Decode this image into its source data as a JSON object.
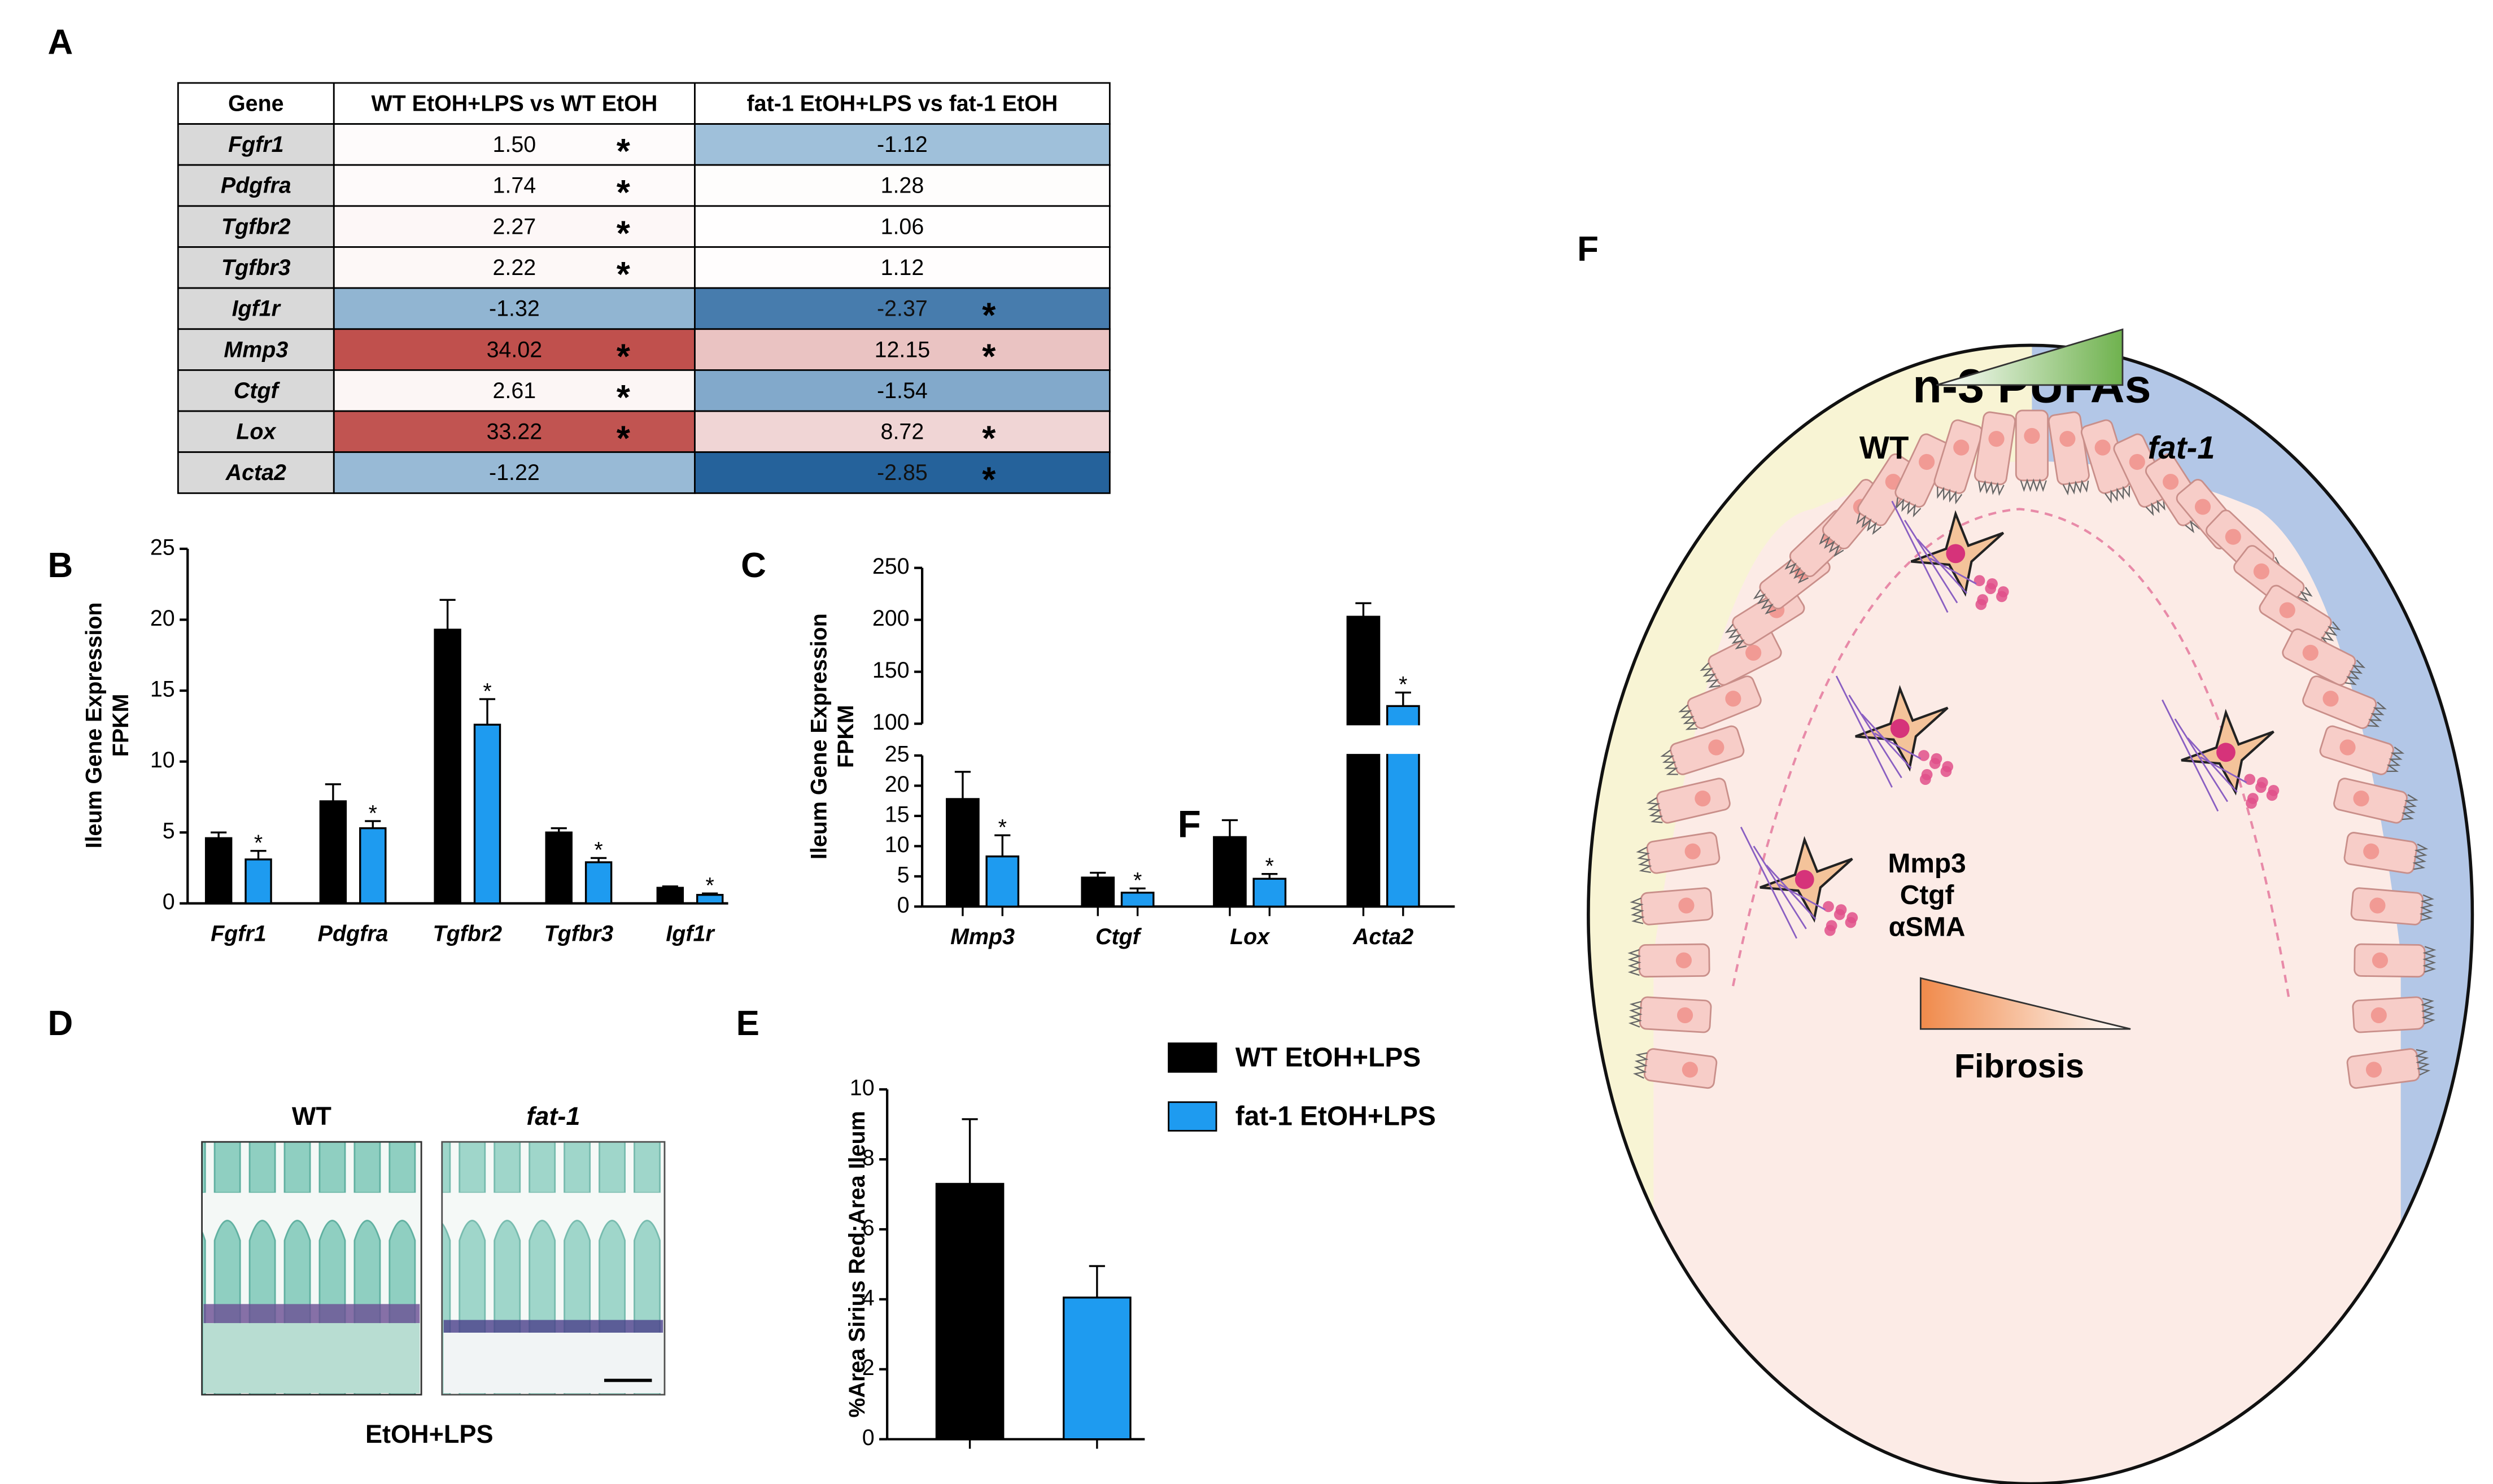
{
  "panel_labels": [
    "A",
    "B",
    "C",
    "D",
    "E",
    "F"
  ],
  "table": {
    "header": [
      "Gene",
      "WT EtOH+LPS vs WT EtOH",
      "fat-1 EtOH+LPS vs fat-1 EtOH"
    ],
    "significance_marker": "*",
    "rows": [
      {
        "gene": "Fgfr1",
        "wt": "1.50",
        "wt_sig": true,
        "fat1": "-1.12",
        "fat1_sig": false
      },
      {
        "gene": "Pdgfra",
        "wt": "1.74",
        "wt_sig": true,
        "fat1": "1.28",
        "fat1_sig": false
      },
      {
        "gene": "Tgfbr2",
        "wt": "2.27",
        "wt_sig": true,
        "fat1": "1.06",
        "fat1_sig": false
      },
      {
        "gene": "Tgfbr3",
        "wt": "2.22",
        "wt_sig": true,
        "fat1": "1.12",
        "fat1_sig": false
      },
      {
        "gene": "Igf1r",
        "wt": "-1.32",
        "wt_sig": false,
        "fat1": "-2.37",
        "fat1_sig": true
      },
      {
        "gene": "Mmp3",
        "wt": "34.02",
        "wt_sig": true,
        "fat1": "12.15",
        "fat1_sig": true
      },
      {
        "gene": "Ctgf",
        "wt": "2.61",
        "wt_sig": true,
        "fat1": "-1.54",
        "fat1_sig": false
      },
      {
        "gene": "Lox",
        "wt": "33.22",
        "wt_sig": true,
        "fat1": "8.72",
        "fat1_sig": true
      },
      {
        "gene": "Acta2",
        "wt": "-1.22",
        "wt_sig": false,
        "fat1": "-2.85",
        "fat1_sig": true
      }
    ]
  },
  "chart_data": [
    {
      "type": "bar",
      "y_label": [
        "Ileum Gene Expression",
        "FPKM"
      ],
      "categories": [
        "Fgfr1",
        "Pdgfra",
        "Tgfbr2",
        "Tgfbr3",
        "Igf1r"
      ],
      "significance_marker": "*",
      "series": [
        {
          "name": "WT EtOH+LPS",
          "color": "#000000",
          "values": [
            4.6,
            7.2,
            19.3,
            5.0,
            1.1
          ],
          "errors": [
            0.4,
            1.2,
            2.1,
            0.3,
            0.1
          ],
          "significant": [
            false,
            false,
            false,
            false,
            false
          ]
        },
        {
          "name": "fat-1 EtOH+LPS",
          "color": "#1e9bf0",
          "values": [
            3.1,
            5.3,
            12.6,
            2.9,
            0.6
          ],
          "errors": [
            0.6,
            0.5,
            1.8,
            0.3,
            0.1
          ],
          "significant": [
            true,
            true,
            true,
            true,
            true
          ]
        }
      ],
      "ylim": [
        0,
        25
      ],
      "yticks": [
        0,
        5,
        10,
        15,
        20,
        25
      ]
    },
    {
      "type": "broken-bar",
      "y_label": [
        "Ileum Gene Expression",
        "FPKM"
      ],
      "categories": [
        "Mmp3",
        "Ctgf",
        "Lox",
        "Acta2"
      ],
      "significance_marker": "*",
      "annotation": "F",
      "series": [
        {
          "name": "WT EtOH+LPS",
          "color": "#000000",
          "values": [
            17.8,
            4.8,
            11.5,
            203
          ],
          "errors": [
            4.5,
            0.8,
            2.8,
            13
          ],
          "significant": [
            false,
            false,
            false,
            false
          ]
        },
        {
          "name": "fat-1 EtOH+LPS",
          "color": "#1e9bf0",
          "values": [
            8.3,
            2.3,
            4.6,
            117
          ],
          "errors": [
            3.5,
            0.7,
            0.8,
            13
          ],
          "significant": [
            true,
            true,
            true,
            true
          ]
        }
      ],
      "ylim": [
        0,
        250
      ],
      "axis_break": [
        25,
        100
      ],
      "yticks": [
        0,
        5,
        10,
        15,
        20,
        25,
        100,
        150,
        200,
        250
      ]
    },
    {
      "type": "bar",
      "y_label": [
        "%Area Sirius Red:Area Ileum"
      ],
      "categories": [
        null
      ],
      "series": [
        {
          "name": "WT EtOH+LPS",
          "color": "#000000",
          "values": [
            7.3
          ],
          "errors": [
            1.85
          ]
        },
        {
          "name": "fat-1 EtOH+LPS",
          "color": "#1e9bf0",
          "values": [
            4.05
          ],
          "errors": [
            0.9
          ]
        }
      ],
      "ylim": [
        0,
        10
      ],
      "yticks": [
        0,
        2,
        4,
        6,
        8,
        10
      ],
      "legend": "right"
    }
  ],
  "histology": {
    "labels": [
      "WT",
      "fat-1"
    ],
    "caption": "EtOH+LPS"
  },
  "diagram": {
    "title": "n-3 PUFAs",
    "left": "WT",
    "right": "fat-1",
    "markers": [
      "Mmp3",
      "Ctgf",
      "αSMA"
    ],
    "outcome": "Fibrosis"
  }
}
